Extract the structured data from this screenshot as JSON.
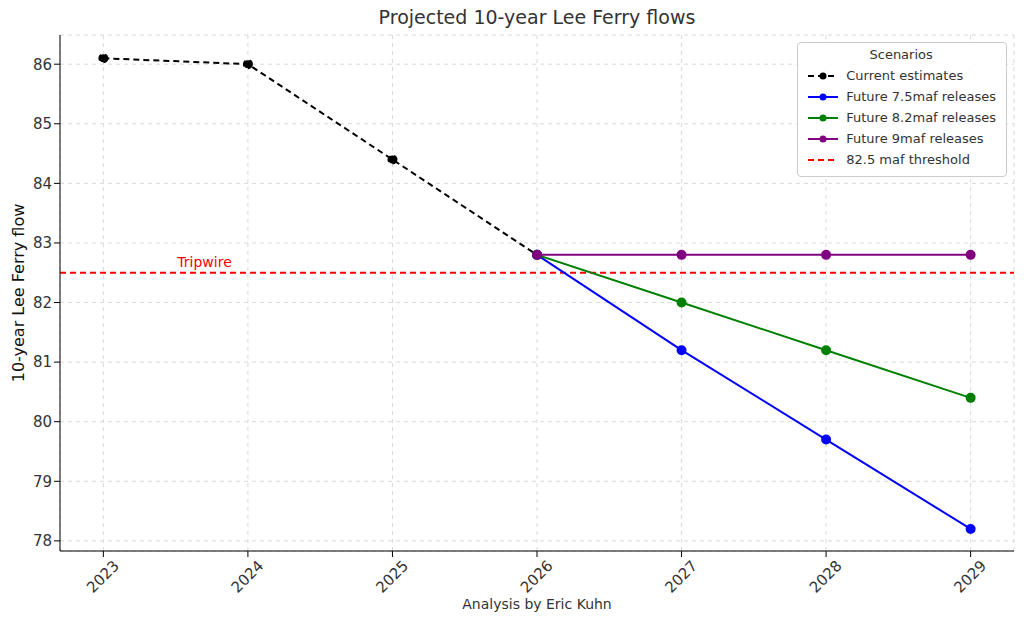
{
  "chart_data": {
    "type": "line",
    "title": "Projected 10-year Lee Ferry flows",
    "y_label": "10-year Lee Ferry flow",
    "footer": "Analysis by Eric Kuhn",
    "x": [
      2023,
      2024,
      2025,
      2026,
      2027,
      2028,
      2029
    ],
    "xlim": [
      2022.7,
      2029.3
    ],
    "xticks": [
      2023,
      2024,
      2025,
      2026,
      2027,
      2028,
      2029
    ],
    "ylim": [
      77.83,
      86.49
    ],
    "yticks": [
      78,
      79,
      80,
      81,
      82,
      83,
      84,
      85,
      86
    ],
    "grid": true,
    "legend": "upper right",
    "legend_title": "Scenarios",
    "series": [
      {
        "name": "Current estimates",
        "color": "#000000",
        "line_style": "dashed",
        "marker": "circle",
        "values": [
          86.1,
          86.0,
          84.4,
          82.8,
          null,
          null,
          null
        ]
      },
      {
        "name": "Future 7.5maf releases",
        "color": "#0000ff",
        "line_style": "solid",
        "marker": "circle",
        "values": [
          null,
          null,
          null,
          82.8,
          81.2,
          79.7,
          78.2
        ]
      },
      {
        "name": "Future 8.2maf releases",
        "color": "#008000",
        "line_style": "solid",
        "marker": "circle",
        "values": [
          null,
          null,
          null,
          82.8,
          82.0,
          81.2,
          80.4
        ]
      },
      {
        "name": "Future 9maf releases",
        "color": "#800080",
        "line_style": "solid",
        "marker": "circle",
        "values": [
          null,
          null,
          null,
          82.8,
          82.8,
          82.8,
          82.8
        ]
      }
    ],
    "reference_lines": [
      {
        "name": "82.5 maf threshold",
        "value": 82.5,
        "color": "#ff0000",
        "line_style": "dashed"
      }
    ],
    "annotations": [
      {
        "text": "Tripwire",
        "x": 2023.7,
        "y": 82.68,
        "color": "#ff0000"
      }
    ]
  }
}
